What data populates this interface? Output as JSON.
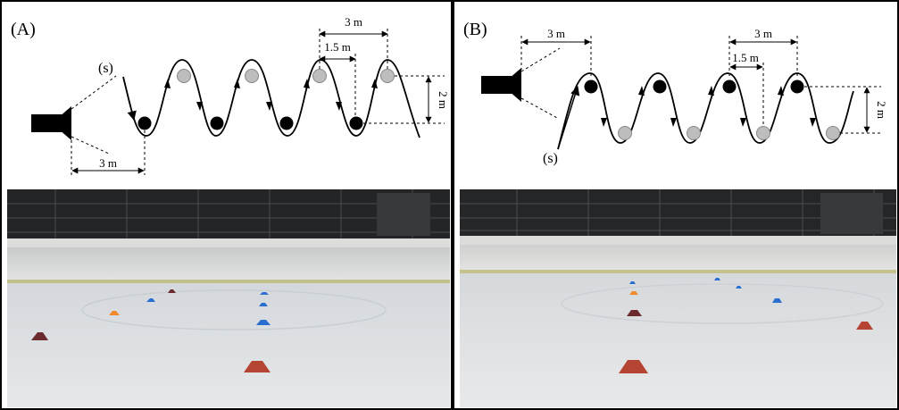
{
  "panel_a": {
    "label": "(A)",
    "start_label": "(s)",
    "dim_top_3m": "3 m",
    "dim_top_1_5m": "1.5 m",
    "dim_height": "2 m",
    "dim_bottom_3m": "3 m"
  },
  "panel_b": {
    "label": "(B)",
    "start_label": "(s)",
    "dim_left_3m": "3 m",
    "dim_top_3m": "3 m",
    "dim_top_1_5m": "1.5 m",
    "dim_height": "2 m"
  },
  "colors": {
    "cone_black": "#000000",
    "cone_gray": "#bdbdbd",
    "rink_cone_red": "#b54532",
    "rink_cone_blue": "#2a6fd0",
    "rink_cone_orange": "#f08a2a",
    "rink_cone_maroon": "#6b2a2e"
  }
}
